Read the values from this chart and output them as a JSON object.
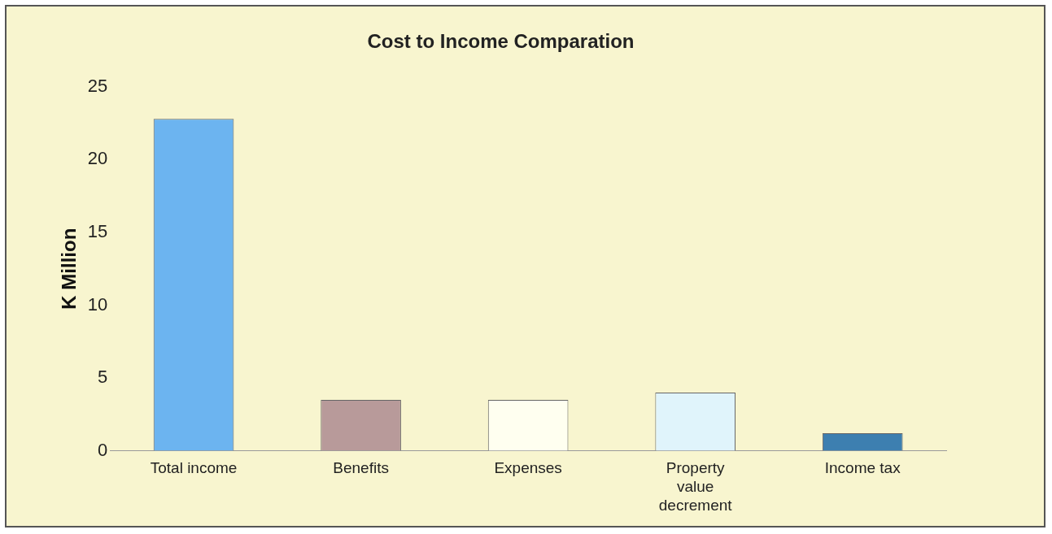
{
  "chart_data": {
    "type": "bar",
    "title": "Cost to Income Comparation",
    "ylabel": "K Million",
    "categories": [
      "Total income",
      "Benefits",
      "Expenses",
      "Property value decrement",
      "Income tax"
    ],
    "values": [
      22.8,
      3.5,
      3.5,
      4,
      1.2
    ],
    "colors": [
      "#6cb4f0",
      "#b89a9a",
      "#fffff0",
      "#e0f4fb",
      "#3d7fb0"
    ],
    "ylim": [
      0,
      25
    ],
    "yticks": [
      0,
      5,
      10,
      15,
      20,
      25
    ],
    "grid": false,
    "legend": false
  }
}
